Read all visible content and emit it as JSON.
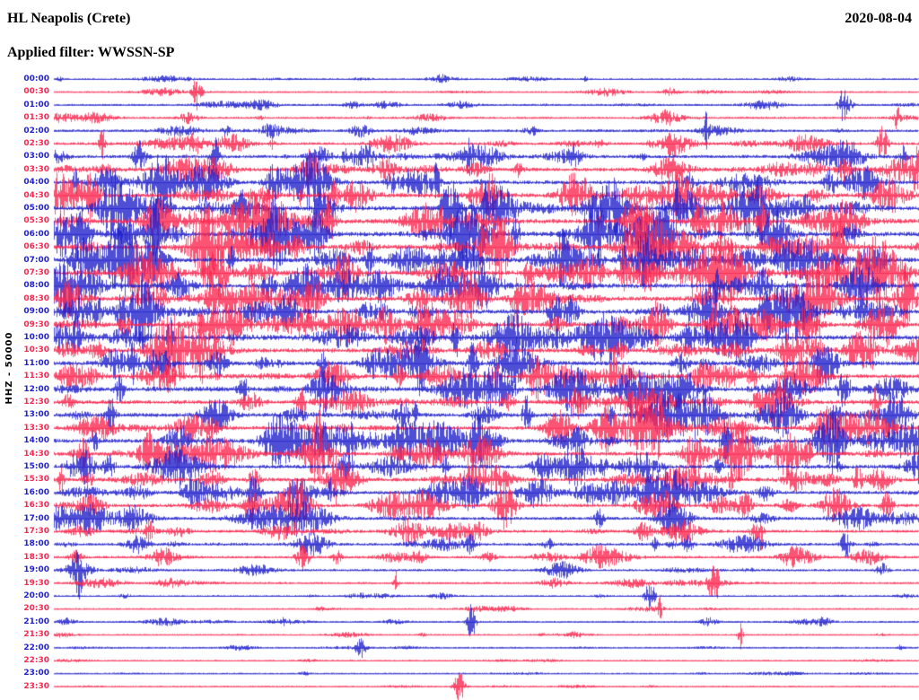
{
  "header": {
    "station": "HL Neapolis (Crete)",
    "date": "2020-08-04",
    "filter": "Applied filter: WWSSN-SP"
  },
  "y_axis_label": "HHZ - 50000",
  "chart_data": {
    "type": "seismogram-helicorder",
    "title": "HL Neapolis (Crete)",
    "date": "2020-08-04",
    "filter": "WWSSN-SP",
    "channel_scale_label": "HHZ - 50000",
    "row_interval_minutes": 30,
    "trace_color_alternation": [
      "blue",
      "red"
    ],
    "colors": {
      "blue": "#2222cc",
      "red": "#fa2850"
    },
    "rows": [
      {
        "time": "00:00",
        "color": "blue",
        "activity": 0.1
      },
      {
        "time": "00:30",
        "color": "red",
        "activity": 0.13
      },
      {
        "time": "01:00",
        "color": "blue",
        "activity": 0.18
      },
      {
        "time": "01:30",
        "color": "red",
        "activity": 0.22
      },
      {
        "time": "02:00",
        "color": "blue",
        "activity": 0.3
      },
      {
        "time": "02:30",
        "color": "red",
        "activity": 0.38
      },
      {
        "time": "03:00",
        "color": "blue",
        "activity": 0.48
      },
      {
        "time": "03:30",
        "color": "red",
        "activity": 0.55
      },
      {
        "time": "04:00",
        "color": "blue",
        "activity": 0.62
      },
      {
        "time": "04:30",
        "color": "red",
        "activity": 0.68
      },
      {
        "time": "05:00",
        "color": "blue",
        "activity": 0.72
      },
      {
        "time": "05:30",
        "color": "red",
        "activity": 0.75
      },
      {
        "time": "06:00",
        "color": "blue",
        "activity": 0.78
      },
      {
        "time": "06:30",
        "color": "red",
        "activity": 0.78
      },
      {
        "time": "07:00",
        "color": "blue",
        "activity": 0.76
      },
      {
        "time": "07:30",
        "color": "red",
        "activity": 0.74
      },
      {
        "time": "08:00",
        "color": "blue",
        "activity": 0.74
      },
      {
        "time": "08:30",
        "color": "red",
        "activity": 0.72
      },
      {
        "time": "09:00",
        "color": "blue",
        "activity": 0.7
      },
      {
        "time": "09:30",
        "color": "red",
        "activity": 0.7
      },
      {
        "time": "10:00",
        "color": "blue",
        "activity": 0.7
      },
      {
        "time": "10:30",
        "color": "red",
        "activity": 0.68
      },
      {
        "time": "11:00",
        "color": "blue",
        "activity": 0.66
      },
      {
        "time": "11:30",
        "color": "red",
        "activity": 0.64
      },
      {
        "time": "12:00",
        "color": "blue",
        "activity": 0.62
      },
      {
        "time": "12:30",
        "color": "red",
        "activity": 0.62
      },
      {
        "time": "13:00",
        "color": "blue",
        "activity": 0.62
      },
      {
        "time": "13:30",
        "color": "red",
        "activity": 0.6
      },
      {
        "time": "14:00",
        "color": "blue",
        "activity": 0.62
      },
      {
        "time": "14:30",
        "color": "red",
        "activity": 0.6
      },
      {
        "time": "15:00",
        "color": "blue",
        "activity": 0.58
      },
      {
        "time": "15:30",
        "color": "red",
        "activity": 0.55
      },
      {
        "time": "16:00",
        "color": "blue",
        "activity": 0.52
      },
      {
        "time": "16:30",
        "color": "red",
        "activity": 0.5
      },
      {
        "time": "17:00",
        "color": "blue",
        "activity": 0.45
      },
      {
        "time": "17:30",
        "color": "red",
        "activity": 0.4
      },
      {
        "time": "18:00",
        "color": "blue",
        "activity": 0.34
      },
      {
        "time": "18:30",
        "color": "red",
        "activity": 0.3
      },
      {
        "time": "19:00",
        "color": "blue",
        "activity": 0.28
      },
      {
        "time": "19:30",
        "color": "red",
        "activity": 0.2
      },
      {
        "time": "20:00",
        "color": "blue",
        "activity": 0.1
      },
      {
        "time": "20:30",
        "color": "red",
        "activity": 0.1
      },
      {
        "time": "21:00",
        "color": "blue",
        "activity": 0.13
      },
      {
        "time": "21:30",
        "color": "red",
        "activity": 0.09
      },
      {
        "time": "22:00",
        "color": "blue",
        "activity": 0.1
      },
      {
        "time": "22:30",
        "color": "red",
        "activity": 0.07
      },
      {
        "time": "23:00",
        "color": "blue",
        "activity": 0.09
      },
      {
        "time": "23:30",
        "color": "red",
        "activity": 0.05
      }
    ]
  }
}
